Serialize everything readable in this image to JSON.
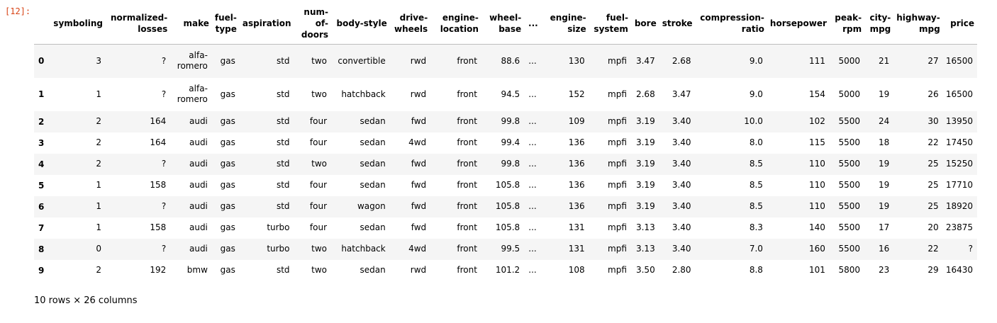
{
  "cell": {
    "prompt": "[12]:",
    "shape_text": "10 rows × 26 columns"
  },
  "table": {
    "columns": [
      "",
      "symboling",
      "normalized-losses",
      "make",
      "fuel-type",
      "aspiration",
      "num-of-doors",
      "body-style",
      "drive-wheels",
      "engine-location",
      "wheel-base",
      "...",
      "engine-size",
      "fuel-system",
      "bore",
      "stroke",
      "compression-ratio",
      "horsepower",
      "peak-rpm",
      "city-mpg",
      "highway-mpg",
      "price"
    ],
    "rows": [
      [
        "0",
        "3",
        "?",
        "alfa-romero",
        "gas",
        "std",
        "two",
        "convertible",
        "rwd",
        "front",
        "88.6",
        "...",
        "130",
        "mpfi",
        "3.47",
        "2.68",
        "9.0",
        "111",
        "5000",
        "21",
        "27",
        "16500"
      ],
      [
        "1",
        "1",
        "?",
        "alfa-romero",
        "gas",
        "std",
        "two",
        "hatchback",
        "rwd",
        "front",
        "94.5",
        "...",
        "152",
        "mpfi",
        "2.68",
        "3.47",
        "9.0",
        "154",
        "5000",
        "19",
        "26",
        "16500"
      ],
      [
        "2",
        "2",
        "164",
        "audi",
        "gas",
        "std",
        "four",
        "sedan",
        "fwd",
        "front",
        "99.8",
        "...",
        "109",
        "mpfi",
        "3.19",
        "3.40",
        "10.0",
        "102",
        "5500",
        "24",
        "30",
        "13950"
      ],
      [
        "3",
        "2",
        "164",
        "audi",
        "gas",
        "std",
        "four",
        "sedan",
        "4wd",
        "front",
        "99.4",
        "...",
        "136",
        "mpfi",
        "3.19",
        "3.40",
        "8.0",
        "115",
        "5500",
        "18",
        "22",
        "17450"
      ],
      [
        "4",
        "2",
        "?",
        "audi",
        "gas",
        "std",
        "two",
        "sedan",
        "fwd",
        "front",
        "99.8",
        "...",
        "136",
        "mpfi",
        "3.19",
        "3.40",
        "8.5",
        "110",
        "5500",
        "19",
        "25",
        "15250"
      ],
      [
        "5",
        "1",
        "158",
        "audi",
        "gas",
        "std",
        "four",
        "sedan",
        "fwd",
        "front",
        "105.8",
        "...",
        "136",
        "mpfi",
        "3.19",
        "3.40",
        "8.5",
        "110",
        "5500",
        "19",
        "25",
        "17710"
      ],
      [
        "6",
        "1",
        "?",
        "audi",
        "gas",
        "std",
        "four",
        "wagon",
        "fwd",
        "front",
        "105.8",
        "...",
        "136",
        "mpfi",
        "3.19",
        "3.40",
        "8.5",
        "110",
        "5500",
        "19",
        "25",
        "18920"
      ],
      [
        "7",
        "1",
        "158",
        "audi",
        "gas",
        "turbo",
        "four",
        "sedan",
        "fwd",
        "front",
        "105.8",
        "...",
        "131",
        "mpfi",
        "3.13",
        "3.40",
        "8.3",
        "140",
        "5500",
        "17",
        "20",
        "23875"
      ],
      [
        "8",
        "0",
        "?",
        "audi",
        "gas",
        "turbo",
        "two",
        "hatchback",
        "4wd",
        "front",
        "99.5",
        "...",
        "131",
        "mpfi",
        "3.13",
        "3.40",
        "7.0",
        "160",
        "5500",
        "16",
        "22",
        "?"
      ],
      [
        "9",
        "2",
        "192",
        "bmw",
        "gas",
        "std",
        "two",
        "sedan",
        "rwd",
        "front",
        "101.2",
        "...",
        "108",
        "mpfi",
        "3.50",
        "2.80",
        "8.8",
        "101",
        "5800",
        "23",
        "29",
        "16430"
      ]
    ]
  }
}
